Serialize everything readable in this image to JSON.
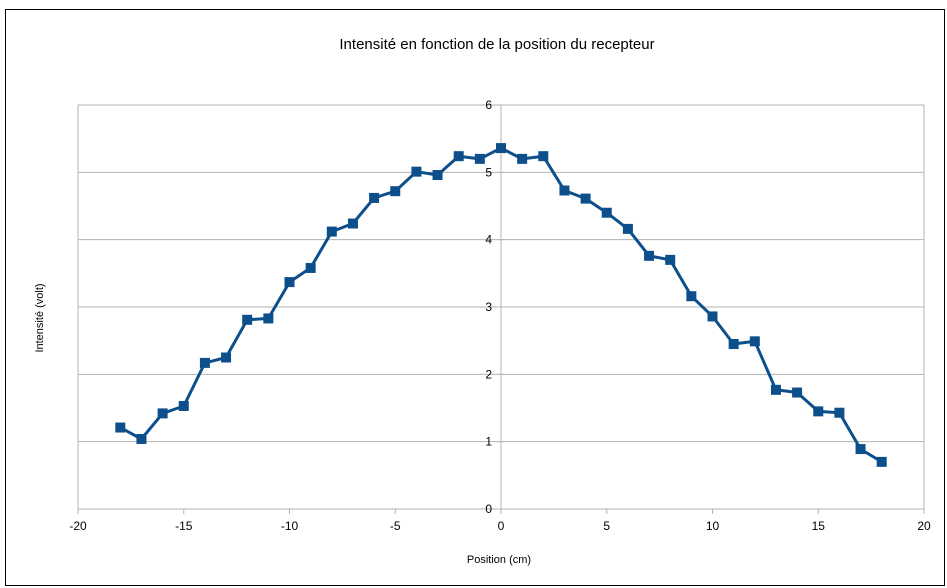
{
  "chart_data": {
    "type": "line",
    "title": "Intensité en fonction de la position du recepteur",
    "xlabel": "Position (cm)",
    "ylabel": "Intensité (volt)",
    "xlim": [
      -20,
      20
    ],
    "ylim": [
      0,
      6
    ],
    "x_ticks": [
      -20,
      -15,
      -10,
      -5,
      0,
      5,
      10,
      15,
      20
    ],
    "y_ticks": [
      0,
      1,
      2,
      3,
      4,
      5,
      6
    ],
    "grid": "horizontal",
    "legend": "none",
    "series_color": "#0d4f8b",
    "series": [
      {
        "x": [
          -18,
          -17,
          -16,
          -15,
          -14,
          -13,
          -12,
          -11,
          -10,
          -9,
          -8,
          -7,
          -6,
          -5,
          -4,
          -3,
          -2,
          -1,
          0,
          1,
          2,
          3,
          4,
          5,
          6,
          7,
          8,
          9,
          10,
          11,
          12,
          13,
          14,
          15,
          16,
          17,
          18
        ],
        "y": [
          1.21,
          1.04,
          1.42,
          1.53,
          2.17,
          2.25,
          2.81,
          2.83,
          3.37,
          3.58,
          4.12,
          4.24,
          4.62,
          4.72,
          5.01,
          4.96,
          5.24,
          5.2,
          5.36,
          5.2,
          5.24,
          4.73,
          4.61,
          4.4,
          4.16,
          3.76,
          3.7,
          3.16,
          2.86,
          2.45,
          2.49,
          1.77,
          1.73,
          1.45,
          1.43,
          0.89,
          0.7
        ]
      }
    ]
  }
}
